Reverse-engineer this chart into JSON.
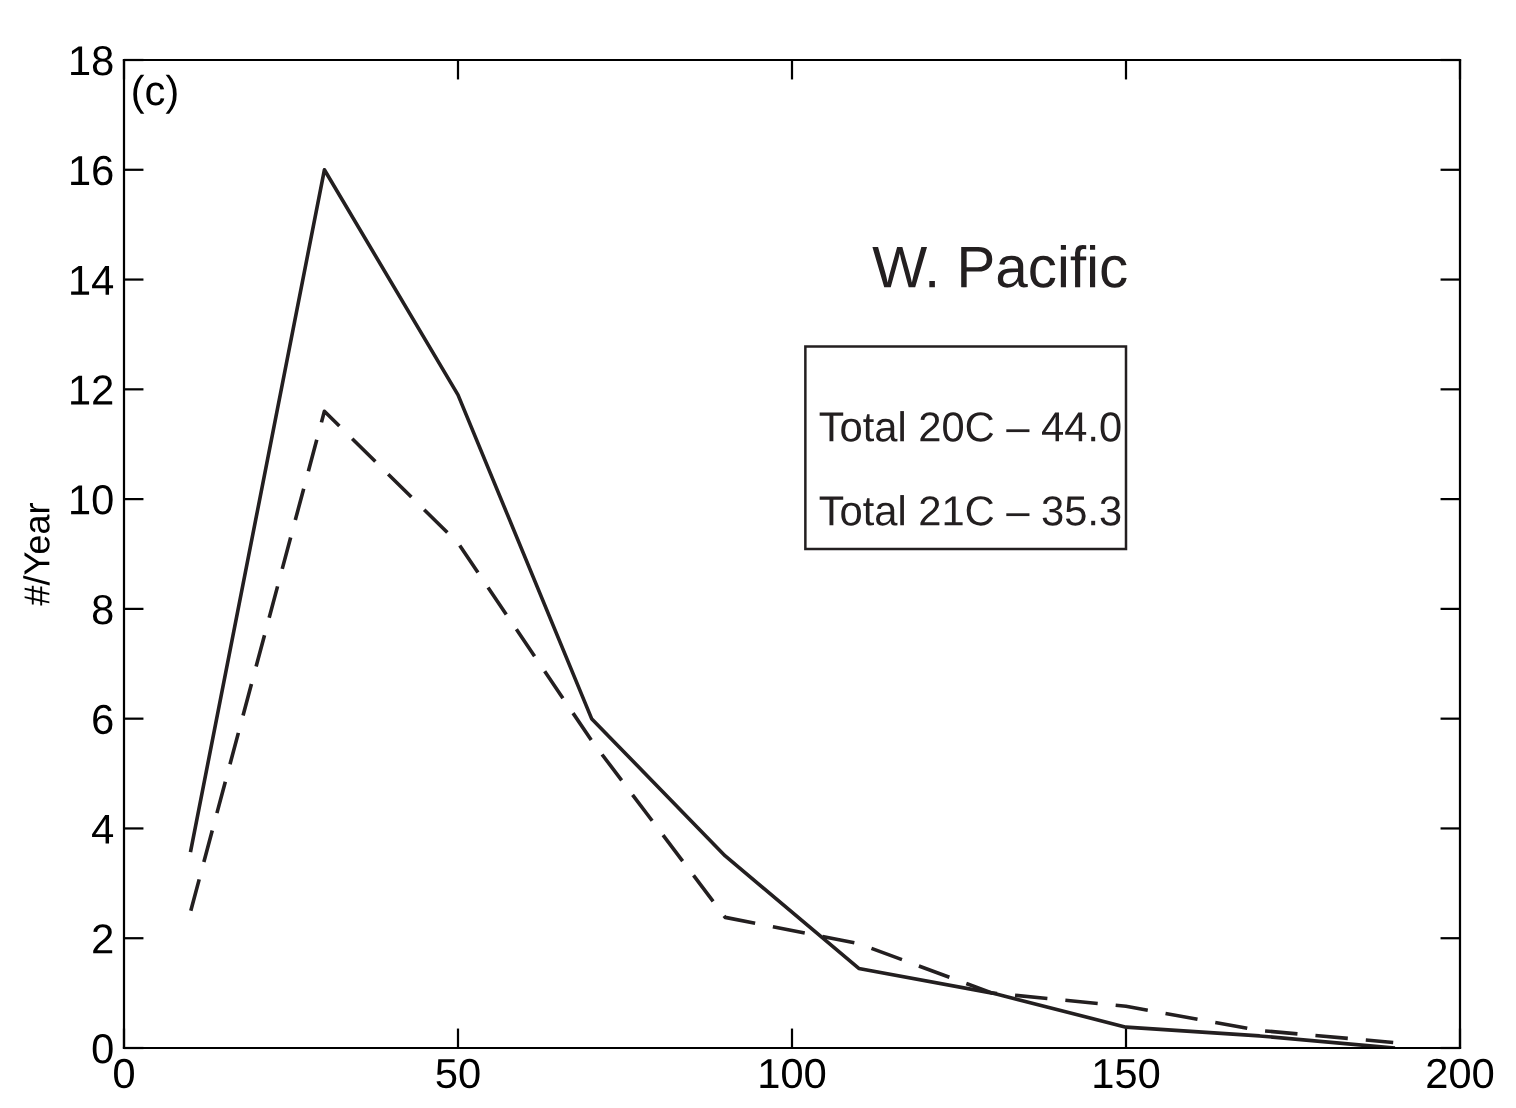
{
  "chart_data": {
    "type": "line",
    "title": "W. Pacific",
    "ylabel": "#/Year",
    "x": [
      10,
      30,
      50,
      70,
      90,
      110,
      130,
      150,
      170,
      190
    ],
    "series": [
      {
        "color": "#231f20",
        "line_style": "solid",
        "values": [
          3.6,
          16.0,
          11.9,
          6.0,
          3.5,
          1.45,
          1.0,
          0.38,
          0.22,
          0.0
        ]
      },
      {
        "color": "#231f20",
        "line_style": "dashed",
        "values": [
          2.5,
          11.6,
          9.2,
          5.6,
          2.38,
          1.9,
          1.0,
          0.76,
          0.32,
          0.1
        ]
      }
    ],
    "annotations": [
      "(c)",
      "Total 20C – 44.0",
      "Total 21C – 35.3"
    ],
    "xlim": [
      0,
      200
    ],
    "xticks": [
      0,
      50,
      100,
      150,
      200
    ],
    "ylim": [
      0,
      18
    ],
    "yticks": [
      0,
      2,
      4,
      6,
      8,
      10,
      12,
      14,
      16,
      18
    ],
    "grid": false,
    "legend": false
  }
}
